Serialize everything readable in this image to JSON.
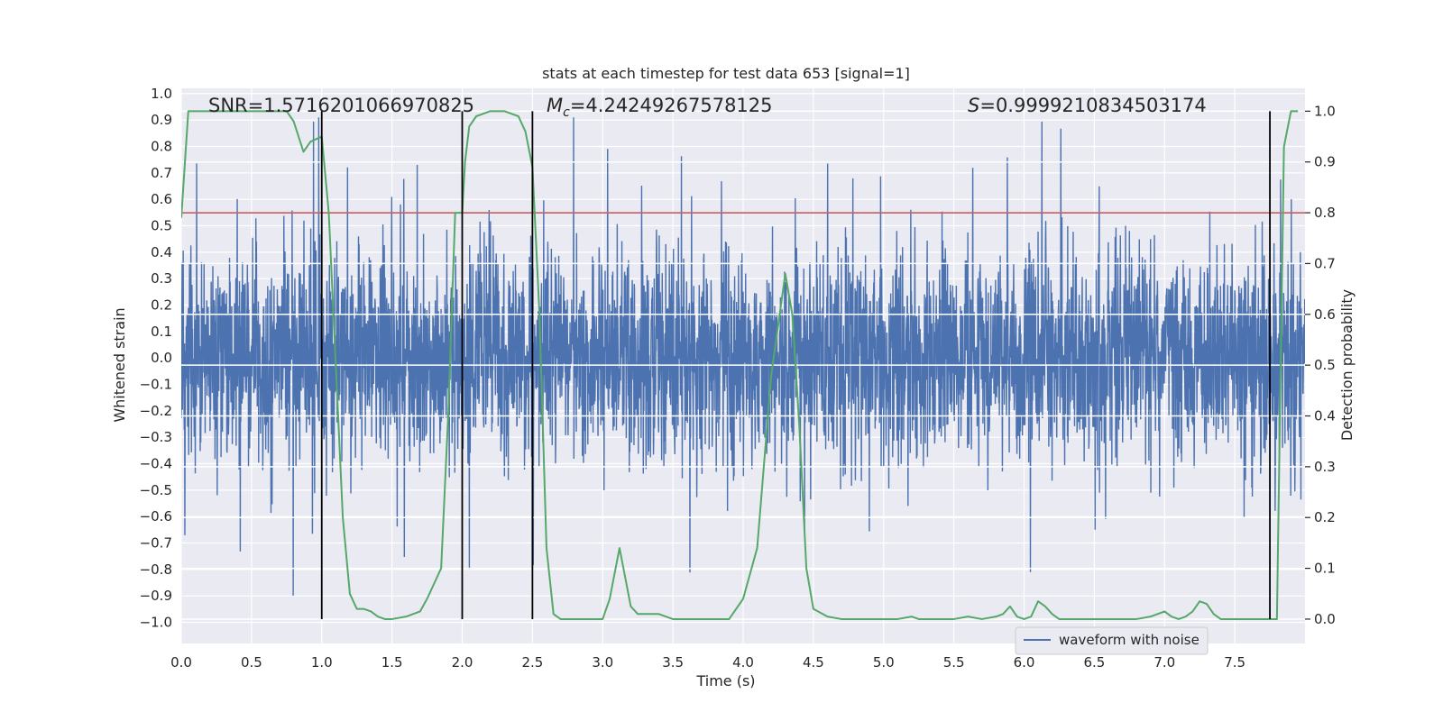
{
  "chart_data": {
    "type": "line",
    "title": "stats at each timestep for test data 653 [signal=1]",
    "xlabel": "Time (s)",
    "ylabel": "Whitened strain",
    "y2label": "Detection probability",
    "xlim": [
      0.0,
      8.0
    ],
    "ylim": [
      -1.08,
      1.02
    ],
    "y2lim": [
      -0.048,
      1.045
    ],
    "x_ticks": [
      "0.0",
      "0.5",
      "1.0",
      "1.5",
      "2.0",
      "2.5",
      "3.0",
      "3.5",
      "4.0",
      "4.5",
      "5.0",
      "5.5",
      "6.0",
      "6.5",
      "7.0",
      "7.5"
    ],
    "y_ticks": [
      "1.0",
      "0.9",
      "0.8",
      "0.7",
      "0.6",
      "0.5",
      "0.4",
      "0.3",
      "0.2",
      "0.1",
      "0.0",
      "-0.1",
      "-0.2",
      "-0.3",
      "-0.4",
      "-0.5",
      "-0.6",
      "-0.7",
      "-0.8",
      "-0.9",
      "-1.0"
    ],
    "y2_ticks": [
      "1.0",
      "0.9",
      "0.8",
      "0.7",
      "0.6",
      "0.5",
      "0.4",
      "0.3",
      "0.2",
      "0.1",
      "0.0"
    ],
    "annotations": {
      "snr": "SNR=1.5716201066970825",
      "mc_symbol": "M",
      "mc_sub": "c",
      "mc_value": "=4.24249267578125",
      "s_symbol": "S",
      "s_value": "=0.9999210834503174"
    },
    "event_lines_x": [
      1.0,
      2.0,
      2.5,
      7.75
    ],
    "threshold_prob": 0.8,
    "legend": {
      "label": "waveform with noise",
      "location": "lower right"
    },
    "colors": {
      "waveform": "#4c72b0",
      "probability": "#55a868",
      "threshold": "#c44e52",
      "events": "#000000",
      "background": "#eaeaf2",
      "grid": "#ffffff"
    },
    "waveform": {
      "name": "waveform with noise",
      "sample_rate_hz": 512,
      "approx_range": [
        -0.91,
        0.91
      ],
      "description_note": "dense noisy strain, typical amplitude about ±0.35 with spikes up to ±0.9"
    },
    "series": [
      {
        "name": "detection probability",
        "x": [
          0.0,
          0.05,
          0.1,
          0.2,
          0.3,
          0.4,
          0.5,
          0.6,
          0.7,
          0.75,
          0.8,
          0.87,
          0.92,
          1.0,
          1.05,
          1.1,
          1.15,
          1.2,
          1.25,
          1.3,
          1.35,
          1.4,
          1.45,
          1.5,
          1.6,
          1.7,
          1.75,
          1.8,
          1.85,
          1.9,
          1.95,
          2.0,
          2.02,
          2.05,
          2.1,
          2.2,
          2.3,
          2.4,
          2.45,
          2.5,
          2.55,
          2.6,
          2.65,
          2.7,
          2.8,
          2.9,
          3.0,
          3.05,
          3.12,
          3.2,
          3.25,
          3.3,
          3.4,
          3.5,
          3.6,
          3.7,
          3.8,
          3.9,
          4.0,
          4.1,
          4.2,
          4.3,
          4.35,
          4.4,
          4.45,
          4.5,
          4.6,
          4.7,
          4.8,
          4.9,
          5.0,
          5.1,
          5.2,
          5.25,
          5.3,
          5.35,
          5.4,
          5.5,
          5.6,
          5.7,
          5.8,
          5.85,
          5.9,
          5.95,
          6.0,
          6.05,
          6.1,
          6.15,
          6.2,
          6.25,
          6.3,
          6.4,
          6.5,
          6.6,
          6.7,
          6.8,
          6.9,
          7.0,
          7.05,
          7.1,
          7.15,
          7.2,
          7.25,
          7.3,
          7.35,
          7.4,
          7.45,
          7.5,
          7.6,
          7.7,
          7.75,
          7.8,
          7.85,
          7.9,
          7.95
        ],
        "values": [
          0.79,
          1.0,
          1.0,
          1.0,
          1.0,
          1.0,
          1.0,
          1.0,
          1.0,
          1.0,
          0.98,
          0.92,
          0.94,
          0.95,
          0.8,
          0.5,
          0.2,
          0.05,
          0.02,
          0.02,
          0.015,
          0.005,
          0.0,
          0.0,
          0.005,
          0.015,
          0.04,
          0.07,
          0.1,
          0.4,
          0.8,
          0.8,
          0.9,
          0.97,
          0.99,
          1.0,
          1.0,
          0.99,
          0.96,
          0.89,
          0.6,
          0.14,
          0.01,
          0.0,
          0.0,
          0.0,
          0.0,
          0.04,
          0.14,
          0.025,
          0.01,
          0.01,
          0.01,
          0.0,
          0.0,
          0.0,
          0.0,
          0.0,
          0.04,
          0.14,
          0.48,
          0.68,
          0.6,
          0.38,
          0.1,
          0.02,
          0.005,
          0.0,
          0.0,
          0.0,
          0.0,
          0.0,
          0.005,
          0.0,
          0.0,
          0.0,
          0.0,
          0.0,
          0.005,
          0.0,
          0.005,
          0.01,
          0.025,
          0.005,
          0.0,
          0.005,
          0.035,
          0.025,
          0.01,
          0.0,
          0.0,
          0.0,
          0.0,
          0.0,
          0.0,
          0.0,
          0.005,
          0.015,
          0.005,
          0.0,
          0.005,
          0.015,
          0.035,
          0.03,
          0.01,
          0.0,
          0.0,
          0.0,
          0.0,
          0.0,
          0.0,
          0.0,
          0.93,
          1.0,
          1.0
        ]
      }
    ]
  }
}
